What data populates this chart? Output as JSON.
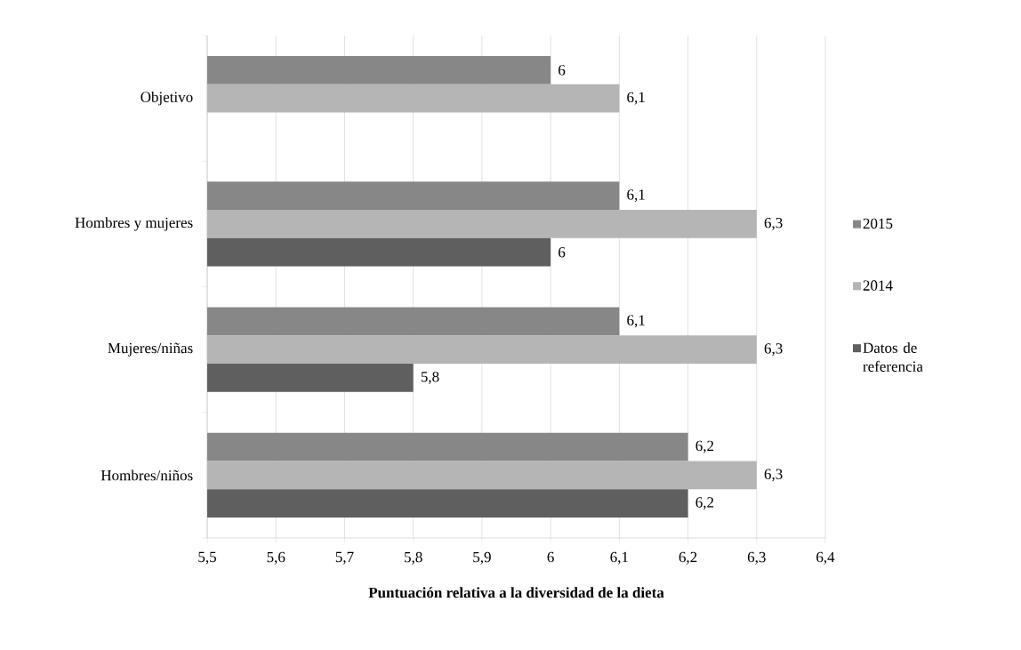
{
  "chart_data": {
    "type": "bar",
    "orientation": "horizontal",
    "xlabel": "Puntuación relativa a la diversidad de la dieta",
    "categories": [
      "Objetivo",
      "Hombres y mujeres",
      "Mujeres/niñas",
      "Hombres/niños"
    ],
    "series": [
      {
        "name": "2015",
        "color": "#878787",
        "values": [
          6,
          6.1,
          6.1,
          6.2
        ],
        "value_labels": [
          "6",
          "6,1",
          "6,1",
          "6,2"
        ]
      },
      {
        "name": "2014",
        "color": "#b5b5b5",
        "values": [
          6.1,
          6.3,
          6.3,
          6.3
        ],
        "value_labels": [
          "6,1",
          "6,3",
          "6,3",
          "6,3"
        ]
      },
      {
        "name": "Datos de referencia",
        "color": "#5f5f5f",
        "values": [
          null,
          6,
          5.8,
          6.2
        ],
        "value_labels": [
          null,
          "6",
          "5,8",
          "6,2"
        ]
      }
    ],
    "xlim": [
      5.5,
      6.4
    ],
    "xticks": [
      {
        "value": 5.5,
        "label": "5,5"
      },
      {
        "value": 5.6,
        "label": "5,6"
      },
      {
        "value": 5.7,
        "label": "5,7"
      },
      {
        "value": 5.8,
        "label": "5,8"
      },
      {
        "value": 5.9,
        "label": "5,9"
      },
      6,
      {
        "value": 6.1,
        "label": "6,1"
      },
      {
        "value": 6.2,
        "label": "6,2"
      },
      {
        "value": 6.3,
        "label": "6,3"
      },
      {
        "value": 6.4,
        "label": "6,4"
      }
    ],
    "grid": "x",
    "legend": "right"
  }
}
